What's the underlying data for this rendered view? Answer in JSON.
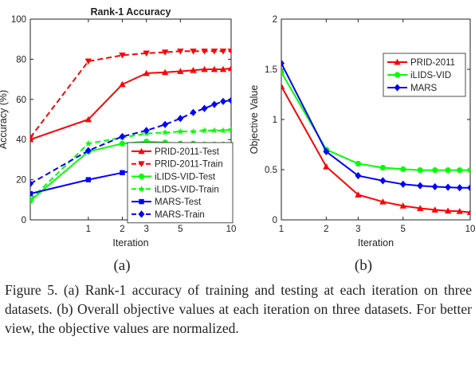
{
  "chart_data": [
    {
      "type": "line",
      "title": "Rank-1 Accuracy",
      "xlabel": "Iteration",
      "ylabel": "Accuracy (%)",
      "xlim": [
        0,
        10
      ],
      "ylim": [
        0,
        100
      ],
      "xticks": [
        1,
        2,
        3,
        5,
        10
      ],
      "yticks": [
        0,
        20,
        40,
        60,
        80,
        100
      ],
      "x_scale": "log",
      "grid": false,
      "legend_position": "bottom-right",
      "series": [
        {
          "name": "PRID-2011-Test",
          "color": "#ff0000",
          "marker": "triangle-up",
          "dashed": false,
          "x": [
            0,
            1,
            2,
            3,
            4,
            5,
            6,
            7,
            8,
            9,
            10
          ],
          "y": [
            40,
            50,
            67.5,
            73,
            73.5,
            74,
            74.5,
            75,
            75,
            75,
            75.5
          ]
        },
        {
          "name": "PRID-2011-Train",
          "color": "#ff0000",
          "marker": "triangle-down",
          "dashed": true,
          "x": [
            0,
            1,
            2,
            3,
            4,
            5,
            6,
            7,
            8,
            9,
            10
          ],
          "y": [
            41,
            79,
            82,
            83,
            83.5,
            84,
            84,
            84,
            84,
            84,
            84
          ]
        },
        {
          "name": "iLIDS-VID-Test",
          "color": "#00ff00",
          "marker": "circle",
          "dashed": false,
          "x": [
            0,
            1,
            2,
            3,
            4,
            5,
            6,
            7,
            8,
            9,
            10
          ],
          "y": [
            9.5,
            34,
            38,
            39,
            38.5,
            38,
            38,
            37.5,
            37.5,
            37.5,
            37.5
          ]
        },
        {
          "name": "iLIDS-VID-Train",
          "color": "#00ff00",
          "marker": "star",
          "dashed": true,
          "x": [
            0,
            1,
            2,
            3,
            4,
            5,
            6,
            7,
            8,
            9,
            10
          ],
          "y": [
            10,
            38,
            41,
            43,
            43.5,
            44,
            44,
            44.5,
            44.5,
            44.5,
            45
          ]
        },
        {
          "name": "MARS-Test",
          "color": "#0000ff",
          "marker": "square",
          "dashed": false,
          "x": [
            0,
            1,
            2,
            3,
            4,
            5,
            6,
            7,
            8,
            9,
            10
          ],
          "y": [
            13,
            20,
            23.5,
            26,
            25,
            27,
            27,
            27,
            27,
            27,
            27
          ]
        },
        {
          "name": "MARS-Train",
          "color": "#0000ff",
          "marker": "diamond",
          "dashed": true,
          "x": [
            0,
            1,
            2,
            3,
            4,
            5,
            6,
            7,
            8,
            9,
            10
          ],
          "y": [
            18,
            34.5,
            41.5,
            44.5,
            47.5,
            50.5,
            53.5,
            55.5,
            57.5,
            59,
            59.5
          ]
        }
      ]
    },
    {
      "type": "line",
      "title": "",
      "xlabel": "Iteration",
      "ylabel": "Objective Value",
      "xlim": [
        1,
        10
      ],
      "ylim": [
        0,
        2
      ],
      "xticks": [
        1,
        2,
        3,
        5,
        10
      ],
      "yticks": [
        0,
        0.5,
        1,
        1.5,
        2
      ],
      "x_scale": "log",
      "grid": false,
      "legend_position": "top-right",
      "series": [
        {
          "name": "PRID-2011",
          "color": "#ff0000",
          "marker": "triangle-up",
          "dashed": false,
          "x": [
            1,
            2,
            3,
            4,
            5,
            6,
            7,
            8,
            9,
            10
          ],
          "y": [
            1.33,
            0.53,
            0.25,
            0.18,
            0.14,
            0.115,
            0.1,
            0.09,
            0.085,
            0.075
          ]
        },
        {
          "name": "iLIDS-VID",
          "color": "#00ff00",
          "marker": "circle",
          "dashed": false,
          "x": [
            1,
            2,
            3,
            4,
            5,
            6,
            7,
            8,
            9,
            10
          ],
          "y": [
            1.47,
            0.7,
            0.56,
            0.52,
            0.505,
            0.495,
            0.495,
            0.495,
            0.495,
            0.495
          ]
        },
        {
          "name": "MARS",
          "color": "#0000ff",
          "marker": "diamond",
          "dashed": false,
          "x": [
            1,
            2,
            3,
            4,
            5,
            6,
            7,
            8,
            9,
            10
          ],
          "y": [
            1.56,
            0.68,
            0.44,
            0.39,
            0.355,
            0.34,
            0.33,
            0.325,
            0.32,
            0.32
          ]
        }
      ]
    }
  ],
  "panel_labels": [
    "(a)",
    "(b)"
  ],
  "caption": "Figure 5. (a) Rank-1 accuracy of training and testing at each iteration on three datasets. (b) Overall objective values at each iteration on three datasets. For better view, the objective values are normalized."
}
